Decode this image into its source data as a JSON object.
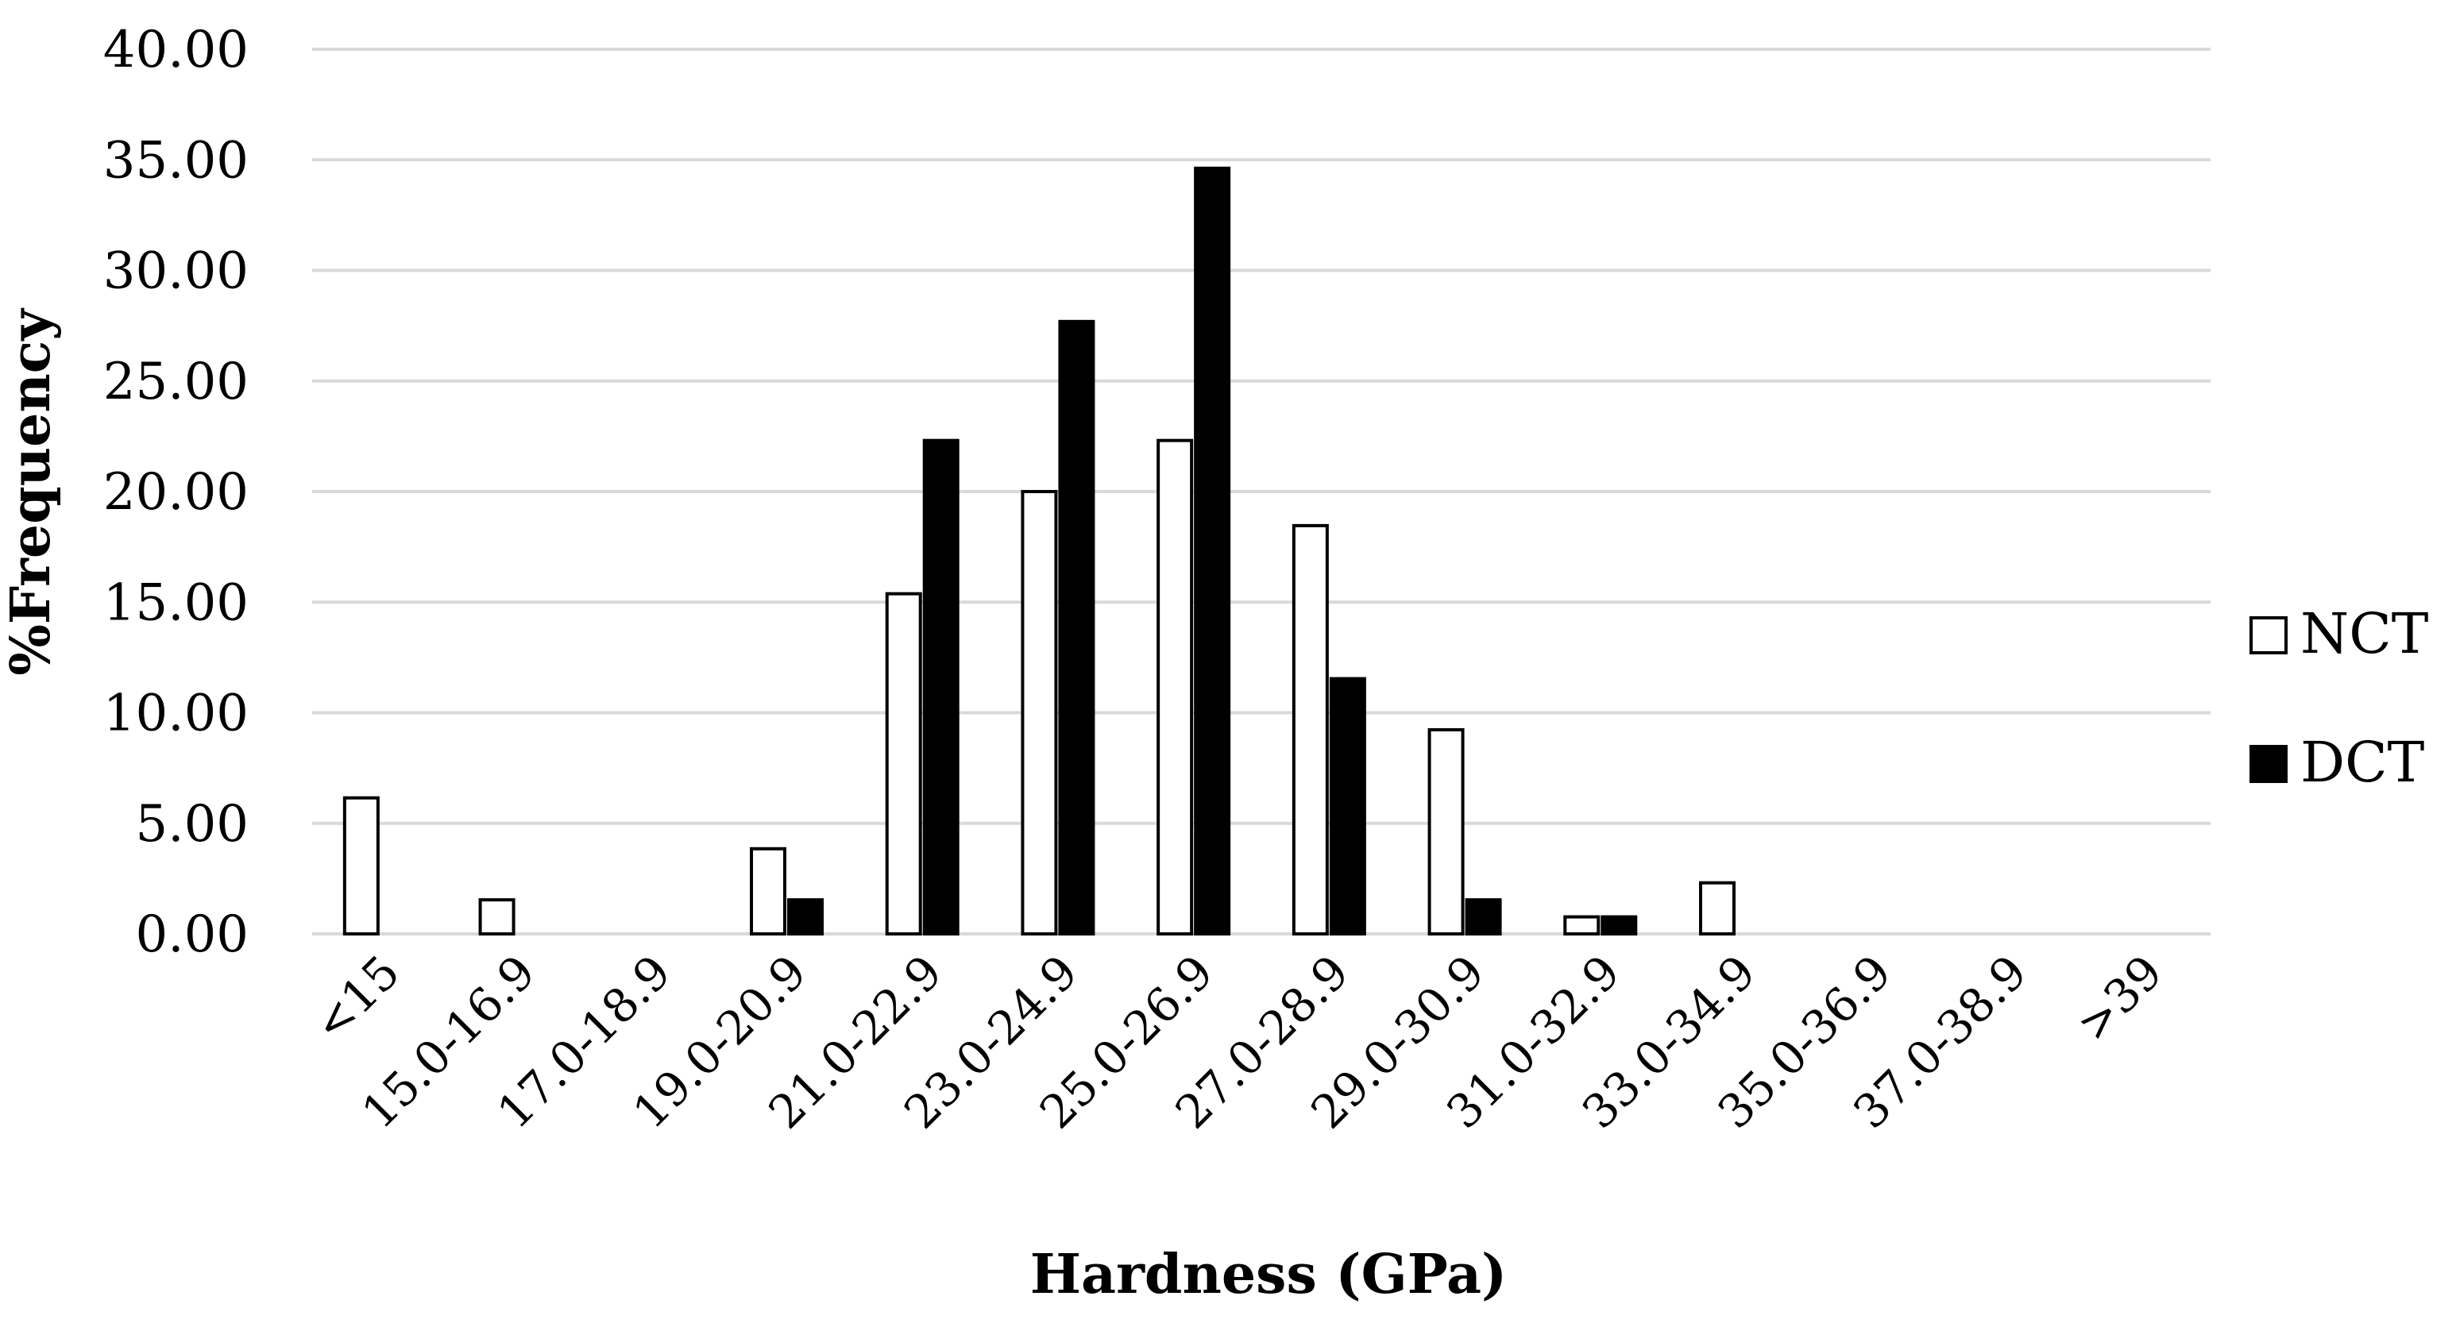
{
  "chart_data": {
    "type": "bar",
    "title": "",
    "xlabel": "Hardness (GPa)",
    "ylabel": "%Frequency",
    "ylim": [
      0,
      40
    ],
    "yticks": [
      "0.00",
      "5.00",
      "10.00",
      "15.00",
      "20.00",
      "25.00",
      "30.00",
      "35.00",
      "40.00"
    ],
    "grid": true,
    "legend_position": "right",
    "categories": [
      "<15",
      "15.0-16.9",
      "17.0-18.9",
      "19.0-20.9",
      "21.0-22.9",
      "23.0-24.9",
      "25.0-26.9",
      "27.0-28.9",
      "29.0-30.9",
      "31.0-32.9",
      "33.0-34.9",
      "35.0-36.9",
      "37.0-38.9",
      ">39"
    ],
    "series": [
      {
        "name": "NCT",
        "color": "#ffffff",
        "stroke": "#000000",
        "values": [
          6.15,
          1.54,
          0,
          3.85,
          15.38,
          20.0,
          22.31,
          18.46,
          9.23,
          0.77,
          2.31,
          0,
          0,
          0
        ]
      },
      {
        "name": "DCT",
        "color": "#000000",
        "stroke": "#000000",
        "values": [
          0,
          0,
          0,
          1.54,
          22.31,
          27.69,
          34.62,
          11.54,
          1.54,
          0.77,
          0,
          0,
          0,
          0
        ]
      }
    ]
  }
}
